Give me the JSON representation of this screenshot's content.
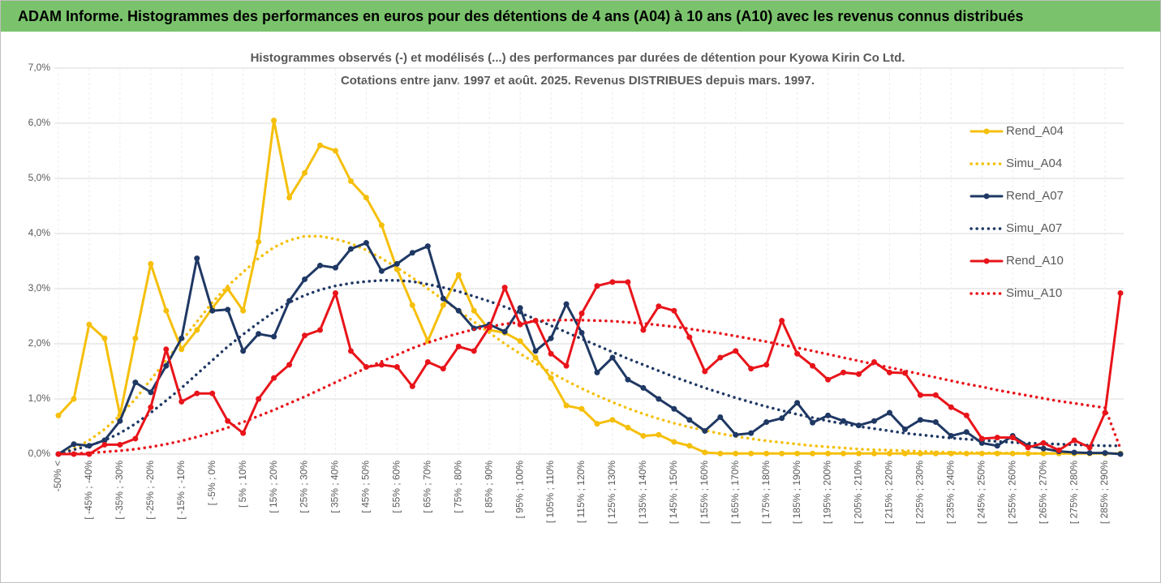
{
  "chart_data": {
    "type": "line",
    "header": "ADAM Informe. Histogrammes des performances en euros pour des détentions de 4 ans (A04) à 10 ans (A10) avec les revenus connus distribués",
    "title": "Histogrammes observés (-) et modélisés (...) des performances par durées de détention pour Kyowa Kirin Co Ltd.",
    "subtitle": "Cotations entre janv. 1997 et août. 2025. Revenus DISTRIBUES depuis mars. 1997.",
    "categories": [
      "-50% <",
      null,
      "[ -45% ; -40%",
      null,
      "[ -35% ; -30%",
      null,
      "[ -25% ; -20%",
      null,
      "[ -15% ; -10%",
      null,
      "[ -5% ; 0%",
      null,
      "[ 5% ; 10%",
      null,
      "[ 15% ; 20%",
      null,
      "[ 25% ; 30%",
      null,
      "[ 35% ; 40%",
      null,
      "[ 45% ; 50%",
      null,
      "[ 55% ; 60%",
      null,
      "[ 65% ; 70%",
      null,
      "[ 75% ; 80%",
      null,
      "[ 85% ; 90%",
      null,
      "[ 95% ; 100%",
      null,
      "[ 105% ; 110%",
      null,
      "[ 115% ; 120%",
      null,
      "[ 125% ; 130%",
      null,
      "[ 135% ; 140%",
      null,
      "[ 145% ; 150%",
      null,
      "[ 155% ; 160%",
      null,
      "[ 165% ; 170%",
      null,
      "[ 175% ; 180%",
      null,
      "[ 185% ; 190%",
      null,
      "[ 195% ; 200%",
      null,
      "[ 205% ; 210%",
      null,
      "[ 215% ; 220%",
      null,
      "[ 225% ; 230%",
      null,
      "[ 235% ; 240%",
      null,
      "[ 245% ; 250%",
      null,
      "[ 255% ; 260%",
      null,
      "[ 265% ; 270%",
      null,
      "[ 275% ; 280%",
      null,
      "[ 285% ; 290%",
      null
    ],
    "series": [
      {
        "name": "Rend_A04",
        "color": "#f5bf0a",
        "line_style": "solid",
        "markers": true,
        "values": [
          0.7,
          1.0,
          2.35,
          2.1,
          0.7,
          2.1,
          3.45,
          2.6,
          1.9,
          2.25,
          2.65,
          3.0,
          2.6,
          3.85,
          6.05,
          4.65,
          5.1,
          5.6,
          5.5,
          4.95,
          4.65,
          4.15,
          3.35,
          2.7,
          2.05,
          2.7,
          3.25,
          2.6,
          2.25,
          2.2,
          2.05,
          1.75,
          1.38,
          0.88,
          0.82,
          0.55,
          0.62,
          0.48,
          0.33,
          0.35,
          0.22,
          0.15,
          0.03,
          0.01,
          0.01,
          0.01,
          0.01,
          0.01,
          0.01,
          0.01,
          0.01,
          0.01,
          0.01,
          0.01,
          0.01,
          0.01,
          0.01,
          0.01,
          0.01,
          0.01,
          0.01,
          0.01,
          0.01,
          0.01,
          0.01,
          0.01,
          0.01,
          0.01,
          0.01,
          0.01
        ]
      },
      {
        "name": "Simu_A04",
        "color": "#f5bf0a",
        "line_style": "dotted",
        "markers": false,
        "values": [
          0,
          0.1,
          0.25,
          0.45,
          0.7,
          1.0,
          1.35,
          1.7,
          2.05,
          2.4,
          2.75,
          3.05,
          3.3,
          3.55,
          3.75,
          3.88,
          3.95,
          3.95,
          3.9,
          3.82,
          3.7,
          3.55,
          3.38,
          3.2,
          3.0,
          2.8,
          2.6,
          2.4,
          2.2,
          2.0,
          1.82,
          1.65,
          1.48,
          1.33,
          1.19,
          1.06,
          0.94,
          0.83,
          0.73,
          0.64,
          0.56,
          0.49,
          0.43,
          0.37,
          0.32,
          0.28,
          0.24,
          0.21,
          0.18,
          0.15,
          0.13,
          0.11,
          0.09,
          0.08,
          0.07,
          0.06,
          0.05,
          0.04,
          0.03,
          0.03,
          0.02,
          0.02,
          0.02,
          0.01,
          0.01,
          0.01,
          0.01,
          null,
          null,
          null
        ]
      },
      {
        "name": "Rend_A07",
        "color": "#1f3864",
        "line_style": "solid",
        "markers": true,
        "values": [
          0,
          0.18,
          0.15,
          0.25,
          0.6,
          1.3,
          1.12,
          1.6,
          2.1,
          3.55,
          2.6,
          2.62,
          1.87,
          2.18,
          2.13,
          2.78,
          3.17,
          3.42,
          3.38,
          3.72,
          3.83,
          3.32,
          3.45,
          3.65,
          3.77,
          2.82,
          2.6,
          2.28,
          2.35,
          2.22,
          2.65,
          1.87,
          2.1,
          2.72,
          2.2,
          1.48,
          1.75,
          1.35,
          1.2,
          1.0,
          0.82,
          0.62,
          0.42,
          0.67,
          0.35,
          0.38,
          0.58,
          0.65,
          0.93,
          0.57,
          0.7,
          0.6,
          0.52,
          0.6,
          0.75,
          0.45,
          0.62,
          0.58,
          0.33,
          0.4,
          0.2,
          0.15,
          0.33,
          0.15,
          0.1,
          0.05,
          0.03,
          0.02,
          0.02,
          0
        ]
      },
      {
        "name": "Simu_A07",
        "color": "#1f3864",
        "line_style": "dotted",
        "markers": false,
        "values": [
          0,
          0.08,
          0.15,
          0.25,
          0.38,
          0.55,
          0.75,
          0.97,
          1.2,
          1.45,
          1.7,
          1.95,
          2.17,
          2.38,
          2.58,
          2.75,
          2.88,
          2.98,
          3.05,
          3.1,
          3.13,
          3.15,
          3.15,
          3.13,
          3.08,
          3.02,
          2.95,
          2.86,
          2.77,
          2.67,
          2.56,
          2.45,
          2.33,
          2.21,
          2.09,
          1.97,
          1.85,
          1.73,
          1.62,
          1.51,
          1.4,
          1.3,
          1.2,
          1.11,
          1.02,
          0.94,
          0.86,
          0.79,
          0.72,
          0.66,
          0.6,
          0.55,
          0.5,
          0.46,
          0.42,
          0.38,
          0.35,
          0.32,
          0.29,
          0.27,
          0.25,
          0.23,
          0.21,
          0.2,
          0.19,
          0.18,
          0.17,
          0.16,
          0.15,
          0.15
        ]
      },
      {
        "name": "Rend_A10",
        "color": "#e8141a",
        "line_style": "solid",
        "markers": true,
        "values": [
          0,
          0,
          0,
          0.17,
          0.17,
          0.28,
          0.85,
          1.9,
          0.95,
          1.1,
          1.1,
          0.6,
          0.38,
          1.0,
          1.38,
          1.62,
          2.15,
          2.25,
          2.92,
          1.87,
          1.58,
          1.62,
          1.58,
          1.23,
          1.67,
          1.55,
          1.95,
          1.87,
          2.3,
          3.02,
          2.35,
          2.42,
          1.82,
          1.6,
          2.55,
          3.05,
          3.12,
          3.12,
          2.25,
          2.68,
          2.6,
          2.12,
          1.5,
          1.75,
          1.87,
          1.55,
          1.62,
          2.42,
          1.82,
          1.6,
          1.35,
          1.48,
          1.45,
          1.67,
          1.48,
          1.47,
          1.07,
          1.07,
          0.85,
          0.7,
          0.28,
          0.3,
          0.3,
          0.12,
          0.2,
          0.07,
          0.25,
          0.12,
          0.75,
          2.92
        ]
      },
      {
        "name": "Simu_A10",
        "color": "#e8141a",
        "line_style": "dotted",
        "markers": false,
        "values": [
          0,
          0.01,
          0.02,
          0.04,
          0.06,
          0.09,
          0.13,
          0.18,
          0.24,
          0.31,
          0.39,
          0.48,
          0.58,
          0.69,
          0.8,
          0.92,
          1.04,
          1.17,
          1.3,
          1.43,
          1.56,
          1.68,
          1.8,
          1.92,
          2.02,
          2.11,
          2.19,
          2.26,
          2.31,
          2.36,
          2.39,
          2.41,
          2.43,
          2.43,
          2.43,
          2.42,
          2.41,
          2.39,
          2.37,
          2.34,
          2.31,
          2.27,
          2.23,
          2.19,
          2.14,
          2.09,
          2.04,
          1.98,
          1.93,
          1.87,
          1.81,
          1.75,
          1.69,
          1.63,
          1.57,
          1.51,
          1.45,
          1.39,
          1.33,
          1.27,
          1.22,
          1.16,
          1.11,
          1.06,
          1.01,
          0.96,
          0.92,
          0.88,
          0.84,
          0.1
        ]
      }
    ],
    "ylim": [
      0,
      7
    ],
    "yticks": [
      {
        "value": 0,
        "label": "0,0%"
      },
      {
        "value": 1,
        "label": "1,0%"
      },
      {
        "value": 2,
        "label": "2,0%"
      },
      {
        "value": 3,
        "label": "3,0%"
      },
      {
        "value": 4,
        "label": "4,0%"
      },
      {
        "value": 5,
        "label": "5,0%"
      },
      {
        "value": 6,
        "label": "6,0%"
      },
      {
        "value": 7,
        "label": "7,0%"
      }
    ],
    "grid": true,
    "legend": "right"
  }
}
